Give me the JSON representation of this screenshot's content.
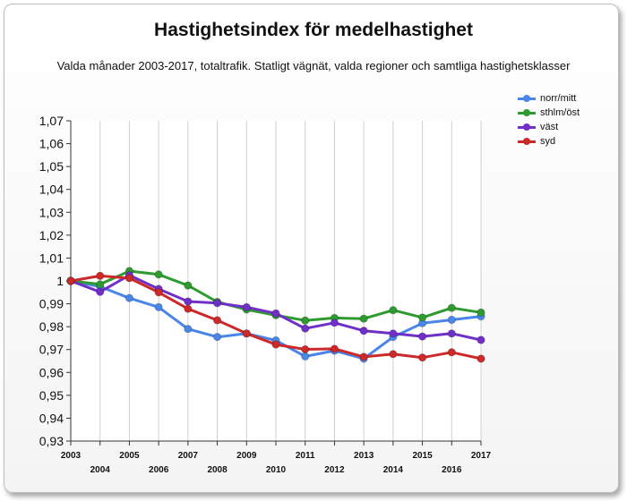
{
  "chart_data": {
    "type": "line",
    "title": "Hastighetsindex för medelhastighet",
    "subtitle": "Valda månader 2003-2017, totaltrafik. Statligt vägnät, valda regioner och samtliga hastighetsklasser",
    "x": [
      "2003",
      "2004",
      "2005",
      "2006",
      "2007",
      "2008",
      "2009",
      "2010",
      "2011",
      "2012",
      "2013",
      "2014",
      "2015",
      "2016",
      "2017"
    ],
    "yticks": [
      "1,07",
      "1,06",
      "1,05",
      "1,04",
      "1,03",
      "1,02",
      "1,01",
      "1",
      "0,99",
      "0,98",
      "0,97",
      "0,96",
      "0,95",
      "0,94",
      "0,93"
    ],
    "ylim": [
      0.93,
      1.07
    ],
    "grid": "vertical",
    "legend_position": "top-right",
    "series": [
      {
        "name": "norr/mitt",
        "color": "#4a86e8",
        "values": [
          1.0,
          0.9975,
          0.9925,
          0.9885,
          0.979,
          0.9755,
          0.977,
          0.974,
          0.967,
          0.9695,
          0.966,
          0.9755,
          0.9815,
          0.983,
          0.9845
        ]
      },
      {
        "name": "sthlm/öst",
        "color": "#2e9a30",
        "values": [
          1.0,
          0.9985,
          1.0043,
          1.0028,
          0.998,
          0.9908,
          0.9875,
          0.985,
          0.9827,
          0.9838,
          0.9835,
          0.9872,
          0.984,
          0.9882,
          0.9862
        ]
      },
      {
        "name": "väst",
        "color": "#7030c8",
        "values": [
          1.0,
          0.9952,
          1.0025,
          0.9965,
          0.991,
          0.9903,
          0.9885,
          0.9858,
          0.9792,
          0.9817,
          0.9782,
          0.977,
          0.9757,
          0.977,
          0.9742
        ]
      },
      {
        "name": "syd",
        "color": "#cc2a2a",
        "values": [
          1.0,
          1.0022,
          1.0012,
          0.995,
          0.9878,
          0.9828,
          0.977,
          0.9722,
          0.9701,
          0.9703,
          0.9668,
          0.968,
          0.9665,
          0.9688,
          0.966
        ]
      }
    ]
  }
}
